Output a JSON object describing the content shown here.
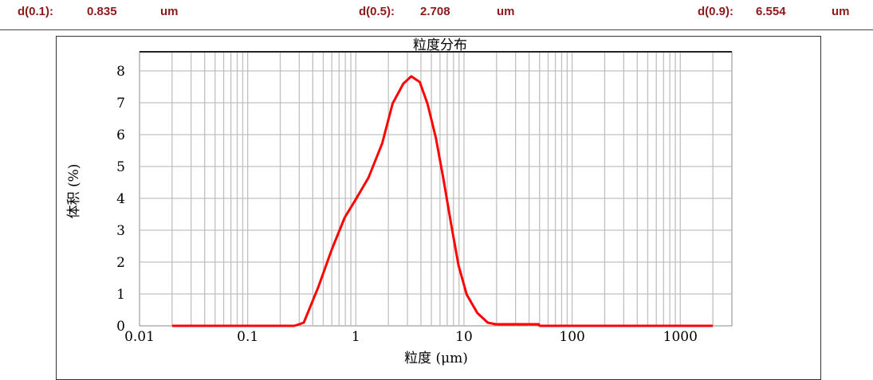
{
  "header": {
    "items": [
      {
        "label": "d(0.1):",
        "value": "0.835",
        "unit": "um"
      },
      {
        "label": "d(0.5):",
        "value": "2.708",
        "unit": "um"
      },
      {
        "label": "d(0.9):",
        "value": "6.554",
        "unit": "um"
      }
    ]
  },
  "colors": {
    "header_text": "#8b1a1a",
    "series": "#ff0000",
    "grid": "#c0c0c0"
  },
  "chart_data": {
    "type": "line",
    "title": "粒度分布",
    "xlabel": "粒度 (μm)",
    "ylabel": "体积 (%)",
    "x_scale": "log",
    "xlim": [
      0.01,
      3000
    ],
    "ylim": [
      0,
      8.6
    ],
    "x_ticks": [
      "0.01",
      "0.1",
      "1",
      "10",
      "100",
      "1000"
    ],
    "y_ticks": [
      "0",
      "1",
      "2",
      "3",
      "4",
      "5",
      "6",
      "7",
      "8"
    ],
    "grid": true,
    "legend": "none",
    "series": [
      {
        "x": [
          0.02,
          0.1,
          0.27,
          0.3,
          0.33,
          0.45,
          0.6,
          0.79,
          1.0,
          1.31,
          1.75,
          2.19,
          2.75,
          3.25,
          3.9,
          4.6,
          5.5,
          6.5,
          7.6,
          8.9,
          10.6,
          13.3,
          16.6,
          19.6,
          25,
          49,
          50,
          2000
        ],
        "y": [
          0,
          0,
          0,
          0.05,
          0.1,
          1.22,
          2.4,
          3.4,
          3.97,
          4.65,
          5.72,
          6.98,
          7.6,
          7.83,
          7.65,
          6.97,
          5.9,
          4.55,
          3.2,
          1.9,
          0.98,
          0.4,
          0.1,
          0.05,
          0.05,
          0.05,
          0,
          0
        ]
      }
    ]
  }
}
